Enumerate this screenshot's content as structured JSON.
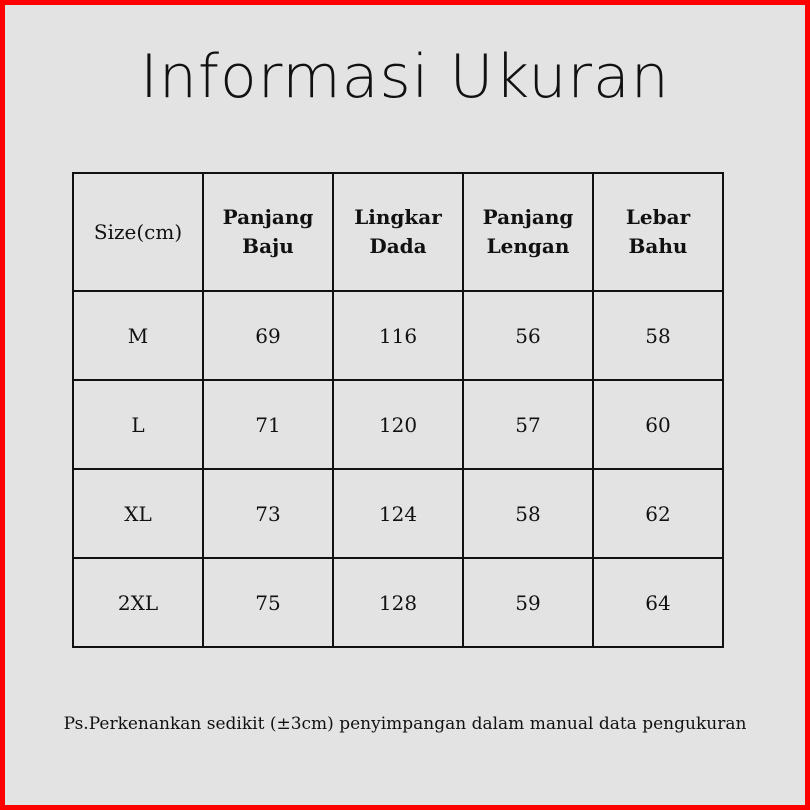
{
  "title": "Informasi Ukuran",
  "table": {
    "headers": [
      "Size(cm)",
      "Panjang Baju",
      "Lingkar Dada",
      "Panjang Lengan",
      "Lebar Bahu"
    ],
    "rows": [
      [
        "M",
        "69",
        "116",
        "56",
        "58"
      ],
      [
        "L",
        "71",
        "120",
        "57",
        "60"
      ],
      [
        "XL",
        "73",
        "124",
        "58",
        "62"
      ],
      [
        "2XL",
        "75",
        "128",
        "59",
        "64"
      ]
    ]
  },
  "note": "Ps.Perkenankan sedikit (±3cm) penyimpangan dalam manual data pengukuran",
  "colors": {
    "border": "#ff0000",
    "background": "#e3e3e3"
  }
}
